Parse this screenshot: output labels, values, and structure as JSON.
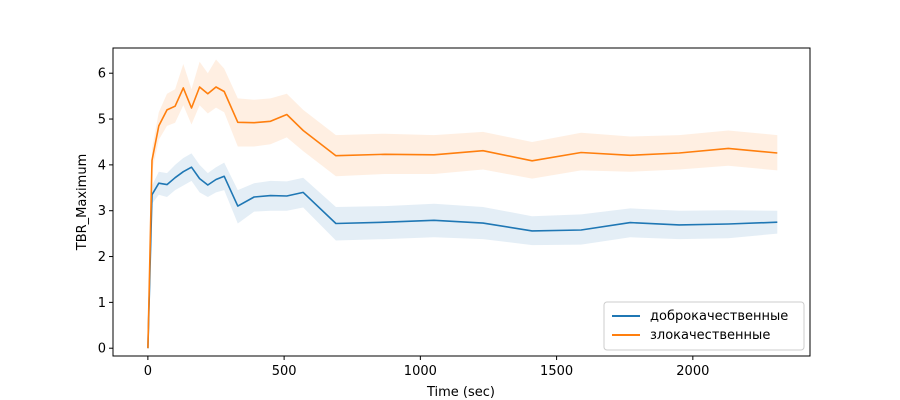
{
  "chart_data": {
    "type": "line",
    "title": "",
    "xlabel": "Time (sec)",
    "ylabel": "TBR_Maximum",
    "xlim": [
      -128,
      2430
    ],
    "ylim": [
      -0.17,
      6.55
    ],
    "xticks": [
      0,
      500,
      1000,
      1500,
      2000
    ],
    "yticks": [
      0,
      1,
      2,
      3,
      4,
      5,
      6
    ],
    "grid": false,
    "legend_position": "lower-right",
    "series": [
      {
        "name": "доброкачественные",
        "color": "#1f77b4",
        "band_color": "#1f77b4",
        "x": [
          0,
          15,
          40,
          70,
          100,
          130,
          160,
          190,
          220,
          250,
          280,
          330,
          390,
          450,
          510,
          570,
          690,
          870,
          1050,
          1230,
          1410,
          1590,
          1770,
          1950,
          2130,
          2310
        ],
        "y": [
          0.0,
          3.35,
          3.6,
          3.57,
          3.72,
          3.85,
          3.95,
          3.7,
          3.56,
          3.68,
          3.75,
          3.1,
          3.3,
          3.33,
          3.32,
          3.4,
          2.72,
          2.75,
          2.79,
          2.73,
          2.56,
          2.58,
          2.74,
          2.69,
          2.71,
          2.75
        ],
        "lower": [
          0.0,
          3.15,
          3.35,
          3.3,
          3.45,
          3.55,
          3.65,
          3.4,
          3.3,
          3.4,
          3.45,
          2.72,
          2.98,
          3.0,
          3.0,
          3.07,
          2.35,
          2.38,
          2.42,
          2.38,
          2.25,
          2.26,
          2.42,
          2.38,
          2.4,
          2.5
        ],
        "upper": [
          0.0,
          3.55,
          3.85,
          3.82,
          4.0,
          4.15,
          4.25,
          4.0,
          3.82,
          3.95,
          4.05,
          3.45,
          3.6,
          3.65,
          3.64,
          3.72,
          3.08,
          3.1,
          3.15,
          3.08,
          2.88,
          2.92,
          3.05,
          3.0,
          3.01,
          3.0
        ]
      },
      {
        "name": "злокачественные",
        "color": "#ff7f0e",
        "band_color": "#ff7f0e",
        "x": [
          0,
          15,
          40,
          70,
          100,
          130,
          160,
          190,
          220,
          250,
          280,
          330,
          390,
          450,
          510,
          570,
          690,
          870,
          1050,
          1230,
          1410,
          1590,
          1770,
          1950,
          2130,
          2310
        ],
        "y": [
          0.0,
          4.1,
          4.85,
          5.2,
          5.28,
          5.68,
          5.24,
          5.7,
          5.55,
          5.7,
          5.6,
          4.93,
          4.92,
          4.95,
          5.1,
          4.75,
          4.2,
          4.23,
          4.22,
          4.31,
          4.09,
          4.27,
          4.21,
          4.26,
          4.36,
          4.26
        ],
        "lower": [
          0.0,
          3.85,
          4.55,
          4.85,
          4.92,
          5.3,
          4.88,
          5.3,
          5.12,
          5.25,
          5.15,
          4.4,
          4.4,
          4.45,
          4.6,
          4.3,
          3.75,
          3.8,
          3.8,
          3.9,
          3.7,
          3.88,
          3.85,
          3.9,
          3.98,
          3.88
        ],
        "upper": [
          0.0,
          4.35,
          5.15,
          5.55,
          5.65,
          6.2,
          5.65,
          6.25,
          6.0,
          6.3,
          6.1,
          5.45,
          5.42,
          5.45,
          5.55,
          5.2,
          4.65,
          4.68,
          4.65,
          4.72,
          4.5,
          4.7,
          4.62,
          4.65,
          4.75,
          4.65
        ]
      }
    ]
  }
}
